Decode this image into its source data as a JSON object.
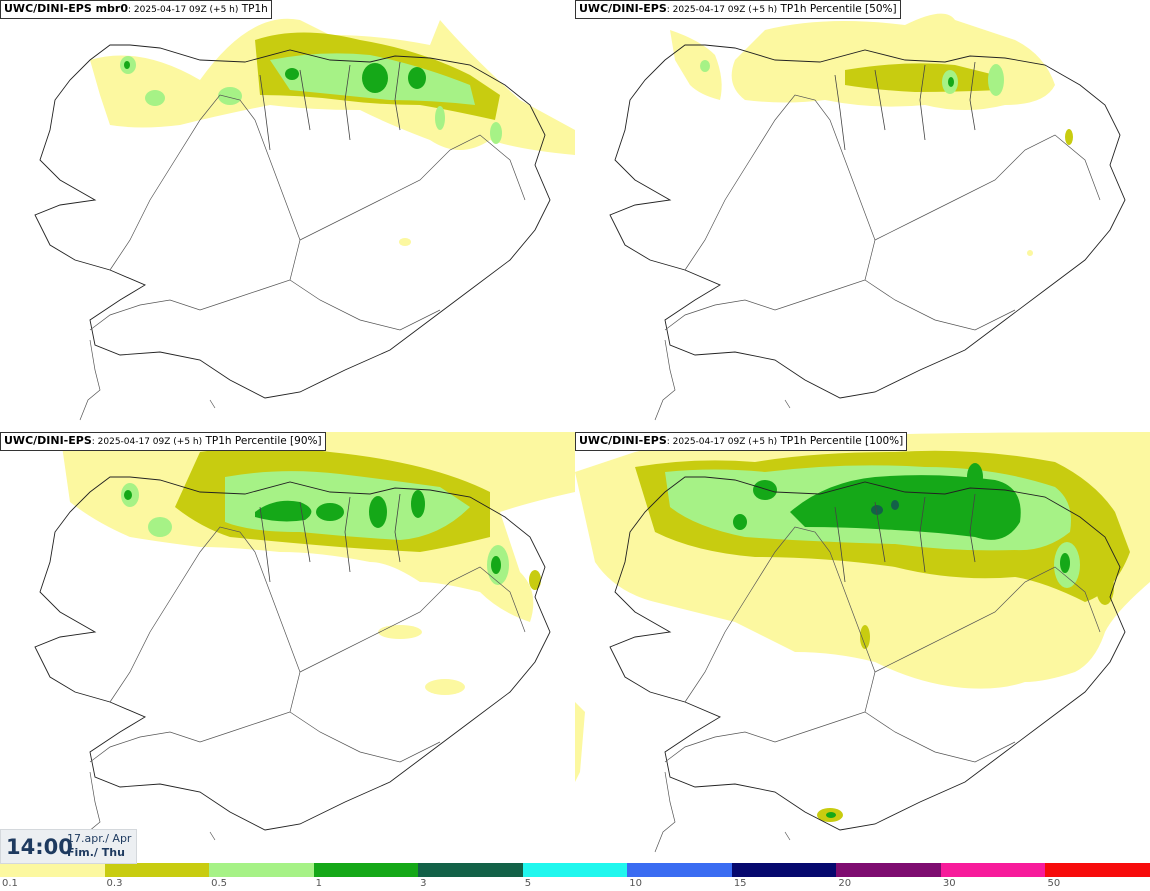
{
  "panels": [
    {
      "model": "UWC/DINI-EPS mbr0",
      "info": ": 2025-04-17 09Z (+5 h)",
      "param": " TP1h"
    },
    {
      "model": "UWC/DINI-EPS",
      "info": ": 2025-04-17 09Z (+5 h)",
      "param": " TP1h Percentile [50%]"
    },
    {
      "model": "UWC/DINI-EPS",
      "info": ": 2025-04-17 09Z (+5 h)",
      "param": " TP1h Percentile [90%]"
    },
    {
      "model": "UWC/DINI-EPS",
      "info": ": 2025-04-17 09Z (+5 h)",
      "param": " TP1h Percentile [100%]"
    }
  ],
  "valid_time": {
    "time": "14:00",
    "date_line": "17.apr./ Apr",
    "day_line": "Fim./ Thu"
  },
  "legend": {
    "colors": [
      "#fcf8a0",
      "#c8cc10",
      "#a6f286",
      "#15a818",
      "#136148",
      "#20f7ee",
      "#3a6cf2",
      "#06086e",
      "#7e0c70",
      "#f71b9b",
      "#f70b0b"
    ],
    "ticks": [
      "0.1",
      "0.3",
      "0.5",
      "1",
      "3",
      "5",
      "10",
      "15",
      "20",
      "30",
      "50"
    ]
  }
}
